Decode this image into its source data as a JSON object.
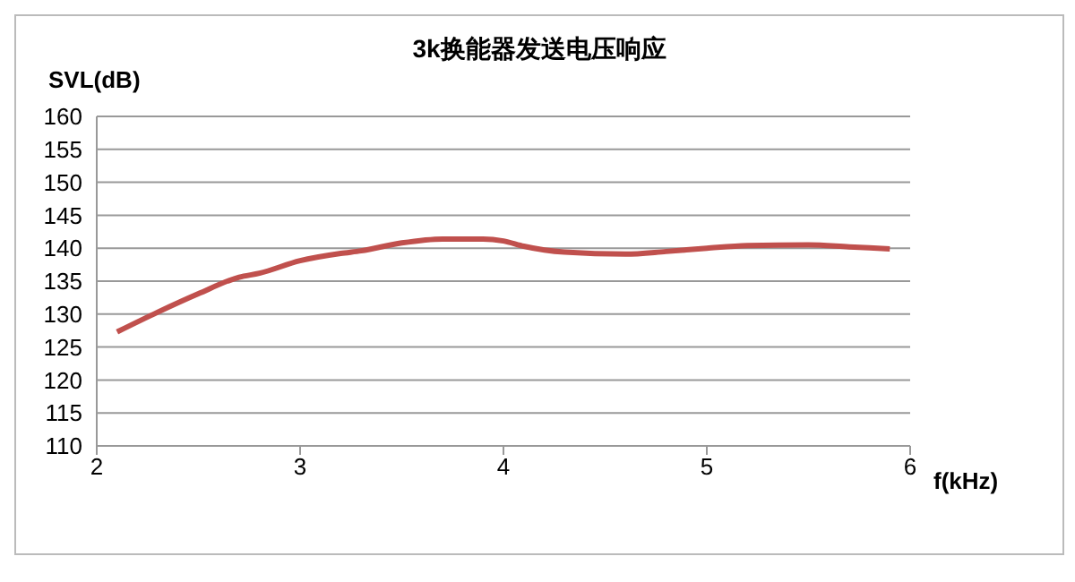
{
  "chart_data": {
    "type": "line",
    "title": "3k换能器发送电压响应",
    "xlabel": "f(kHz)",
    "ylabel": "SVL(dB)",
    "x": [
      2.1,
      2.3,
      2.5,
      2.7,
      2.8,
      3.0,
      3.2,
      3.3,
      3.5,
      3.7,
      3.9,
      4.0,
      4.1,
      4.3,
      4.6,
      4.8,
      5.0,
      5.2,
      5.5,
      5.7,
      5.9
    ],
    "series": [
      {
        "color": "#c0504d",
        "values": [
          127.3,
          130.3,
          133.1,
          135.6,
          136.2,
          138.1,
          139.2,
          139.6,
          140.8,
          141.4,
          141.4,
          141.1,
          140.3,
          139.4,
          139.1,
          139.5,
          140.0,
          140.4,
          140.5,
          140.2,
          139.9
        ]
      }
    ],
    "xlim": [
      2,
      6
    ],
    "xticks": [
      2,
      3,
      4,
      5,
      6
    ],
    "ylim": [
      110,
      160
    ],
    "yticks": [
      110,
      115,
      120,
      125,
      130,
      135,
      140,
      145,
      150,
      155,
      160
    ],
    "grid": "y",
    "legend": false,
    "marker": "none",
    "line_style": "solid"
  }
}
